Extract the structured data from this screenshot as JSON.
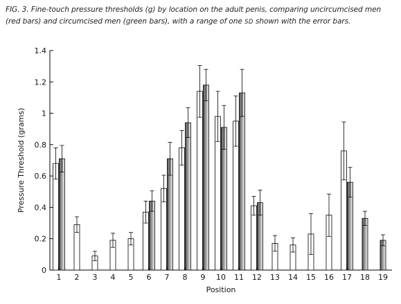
{
  "caption": {
    "before_sd": "FIG. 3. Fine-touch pressure thresholds (g) by location on the adult penis, comparing uncircumcised men (red bars) and circumcised men (green bars), with a range of one",
    "sd": "SD",
    "after_sd": "shown with the error bars."
  },
  "chart_data": {
    "type": "bar",
    "xlabel": "Position",
    "ylabel": "Pressure Threshold (grams)",
    "ylim": [
      0,
      1.4
    ],
    "yticks": [
      "0",
      "0.2",
      "0.4",
      "0.6",
      "0.8",
      "1",
      "1.2",
      "1.4"
    ],
    "categories": [
      "1",
      "2",
      "3",
      "4",
      "5",
      "6",
      "7",
      "8",
      "9",
      "10",
      "11",
      "12",
      "13",
      "14",
      "15",
      "16",
      "17",
      "18",
      "19"
    ],
    "grid": false,
    "series": [
      {
        "values": [
          0.68,
          0.29,
          0.09,
          0.19,
          0.2,
          0.37,
          0.52,
          0.78,
          1.14,
          0.98,
          0.95,
          0.41,
          0.17,
          0.16,
          0.23,
          0.35,
          0.76,
          null,
          null
        ],
        "errors": [
          0.1,
          0.05,
          0.03,
          0.045,
          0.04,
          0.07,
          0.085,
          0.11,
          0.165,
          0.16,
          0.16,
          0.06,
          0.05,
          0.045,
          0.13,
          0.135,
          0.185,
          null,
          null
        ],
        "fill": "white"
      },
      {
        "values": [
          0.71,
          null,
          null,
          null,
          null,
          0.44,
          0.71,
          0.94,
          1.18,
          0.91,
          1.13,
          0.43,
          null,
          null,
          null,
          null,
          0.56,
          0.33,
          0.19
        ],
        "errors": [
          0.085,
          null,
          null,
          null,
          null,
          0.065,
          0.105,
          0.095,
          0.1,
          0.14,
          0.15,
          0.08,
          null,
          null,
          null,
          null,
          0.095,
          0.045,
          0.035
        ],
        "fill": "gradient"
      }
    ]
  }
}
